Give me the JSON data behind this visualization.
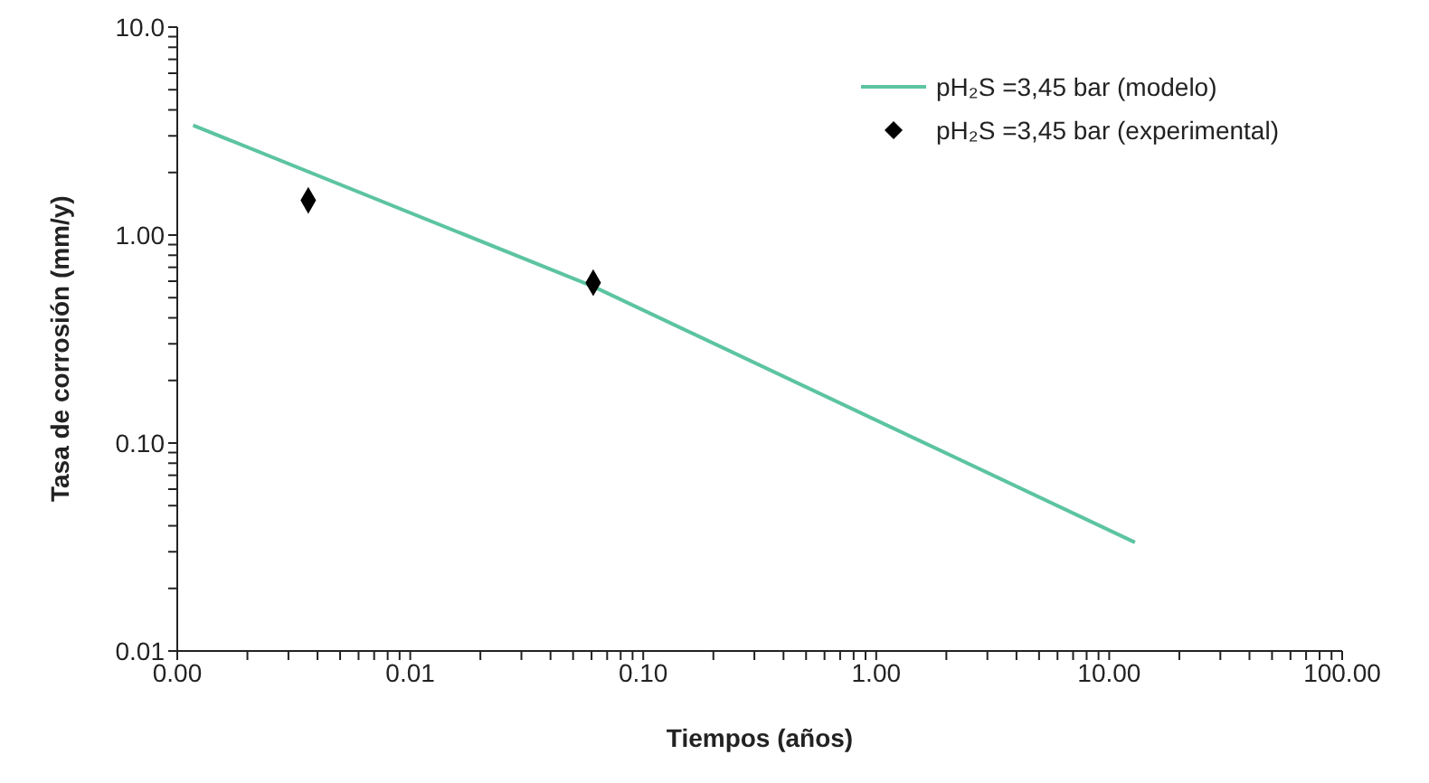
{
  "chart_data": {
    "type": "line",
    "xlabel": "Tiempos (años)",
    "ylabel": "Tasa de corrosión (mm/y)",
    "log": "xy",
    "legend": "top right",
    "grid": false,
    "xlim": [
      0.001,
      100
    ],
    "ylim": [
      0.01,
      10
    ],
    "xticks": [
      {
        "value": 0.001,
        "label": "0.00"
      },
      {
        "value": 0.002,
        "label": null
      },
      {
        "value": 0.003,
        "label": null
      },
      {
        "value": 0.004,
        "label": null
      },
      {
        "value": 0.005,
        "label": null
      },
      {
        "value": 0.006,
        "label": null
      },
      {
        "value": 0.007,
        "label": null
      },
      {
        "value": 0.008,
        "label": null
      },
      {
        "value": 0.009,
        "label": null
      },
      0.01,
      {
        "value": 0.02,
        "label": null
      },
      {
        "value": 0.03,
        "label": null
      },
      {
        "value": 0.04,
        "label": null
      },
      {
        "value": 0.05,
        "label": null
      },
      {
        "value": 0.06,
        "label": null
      },
      {
        "value": 0.07,
        "label": null
      },
      {
        "value": 0.08,
        "label": null
      },
      {
        "value": 0.09,
        "label": null
      },
      {
        "value": 0.1,
        "label": "0.10"
      },
      {
        "value": 0.2,
        "label": null
      },
      {
        "value": 0.3,
        "label": null
      },
      {
        "value": 0.4,
        "label": null
      },
      {
        "value": 0.5,
        "label": null
      },
      {
        "value": 0.6,
        "label": null
      },
      {
        "value": 0.7,
        "label": null
      },
      {
        "value": 0.8,
        "label": null
      },
      {
        "value": 0.9,
        "label": null
      },
      {
        "value": 1,
        "label": "1.00"
      },
      {
        "value": 2,
        "label": null
      },
      {
        "value": 3,
        "label": null
      },
      {
        "value": 4,
        "label": null
      },
      {
        "value": 5,
        "label": null
      },
      {
        "value": 6,
        "label": null
      },
      {
        "value": 7,
        "label": null
      },
      {
        "value": 8,
        "label": null
      },
      {
        "value": 9,
        "label": null
      },
      {
        "value": 10,
        "label": "10.00"
      },
      {
        "value": 20,
        "label": null
      },
      {
        "value": 30,
        "label": null
      },
      {
        "value": 40,
        "label": null
      },
      {
        "value": 50,
        "label": null
      },
      {
        "value": 60,
        "label": null
      },
      {
        "value": 70,
        "label": null
      },
      {
        "value": 80,
        "label": null
      },
      {
        "value": 90,
        "label": null
      },
      {
        "value": 100,
        "label": "100.00"
      }
    ],
    "yticks": [
      0.01,
      {
        "value": 0.02,
        "label": null
      },
      {
        "value": 0.03,
        "label": null
      },
      {
        "value": 0.04,
        "label": null
      },
      {
        "value": 0.05,
        "label": null
      },
      {
        "value": 0.06,
        "label": null
      },
      {
        "value": 0.07,
        "label": null
      },
      {
        "value": 0.08,
        "label": null
      },
      {
        "value": 0.09,
        "label": null
      },
      {
        "value": 0.1,
        "label": "0.10"
      },
      {
        "value": 0.2,
        "label": null
      },
      {
        "value": 0.3,
        "label": null
      },
      {
        "value": 0.4,
        "label": null
      },
      {
        "value": 0.5,
        "label": null
      },
      {
        "value": 0.6,
        "label": null
      },
      {
        "value": 0.7,
        "label": null
      },
      {
        "value": 0.8,
        "label": null
      },
      {
        "value": 0.9,
        "label": null
      },
      {
        "value": 1,
        "label": "1.00"
      },
      {
        "value": 2,
        "label": null
      },
      {
        "value": 3,
        "label": null
      },
      {
        "value": 4,
        "label": null
      },
      {
        "value": 5,
        "label": null
      },
      {
        "value": 6,
        "label": null
      },
      {
        "value": 7,
        "label": null
      },
      {
        "value": 8,
        "label": null
      },
      {
        "value": 9,
        "label": null
      },
      {
        "value": 10,
        "label": "10.0"
      }
    ],
    "series": [
      {
        "name": "pH₂S =3,45 bar (modelo)",
        "color": "#5cc4a0",
        "line_style": "solid",
        "marker": "none",
        "x": [
          0.00117,
          0.061,
          12.9
        ],
        "values": [
          3.37,
          0.566,
          0.0333
        ]
      },
      {
        "name": "pH₂S =3,45 bar (experimental)",
        "type": "scatter",
        "color": "#000000",
        "marker": "diamond",
        "x": [
          0.00365,
          0.061
        ],
        "values": [
          1.47,
          0.59
        ]
      }
    ]
  }
}
